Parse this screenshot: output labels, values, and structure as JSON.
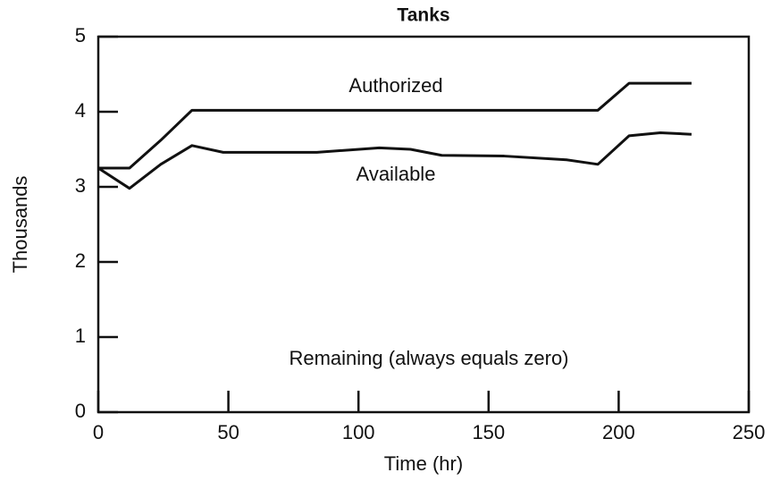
{
  "chart_data": {
    "type": "line",
    "title": "Tanks",
    "xlabel": "Time (hr)",
    "ylabel": "Thousands",
    "x": [
      0,
      12,
      24,
      36,
      48,
      84,
      108,
      120,
      132,
      156,
      180,
      192,
      204,
      216,
      228
    ],
    "series": [
      {
        "name": "Authorized",
        "color": "#111111",
        "values": [
          3.25,
          3.25,
          3.62,
          4.02,
          4.02,
          4.02,
          4.02,
          4.02,
          4.02,
          4.02,
          4.02,
          4.02,
          4.38,
          4.38,
          4.38
        ]
      },
      {
        "name": "Available",
        "color": "#111111",
        "values": [
          3.25,
          2.98,
          3.3,
          3.55,
          3.46,
          3.46,
          3.52,
          3.5,
          3.42,
          3.41,
          3.36,
          3.3,
          3.68,
          3.72,
          3.7
        ]
      }
    ],
    "annotations": [
      "Remaining (always equals zero)"
    ],
    "xlim": [
      0,
      250
    ],
    "xticks": [
      0,
      50,
      100,
      150,
      200,
      250
    ],
    "ylim": [
      0,
      5
    ],
    "yticks": [
      0,
      1,
      2,
      3,
      4,
      5
    ]
  }
}
